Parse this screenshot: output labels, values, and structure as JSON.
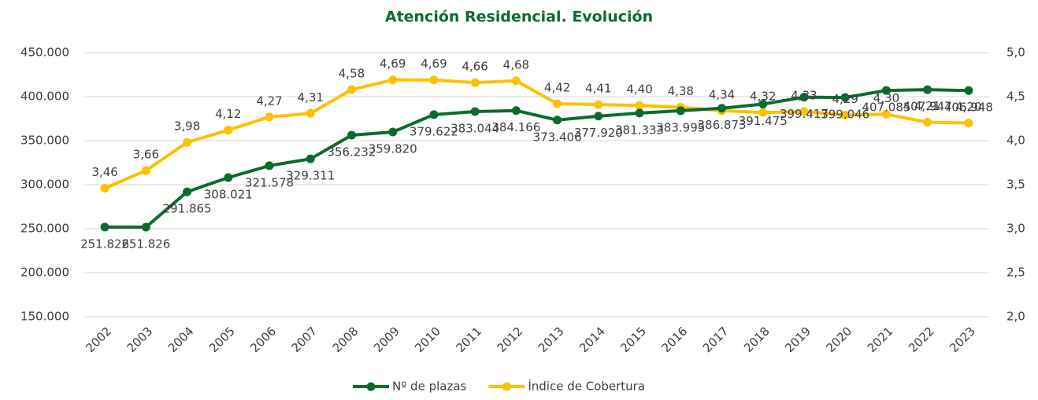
{
  "chart_data": {
    "type": "line",
    "title": "Atención Residencial. Evolución",
    "categories": [
      "2002",
      "2003",
      "2004",
      "2005",
      "2006",
      "2007",
      "2008",
      "2009",
      "2010",
      "2011",
      "2012",
      "2013",
      "2014",
      "2015",
      "2016",
      "2017",
      "2018",
      "2019",
      "2020",
      "2021",
      "2022",
      "2023"
    ],
    "series": [
      {
        "name": "Nº de plazas",
        "color": "#0b6b2f",
        "values": [
          251826,
          251826,
          291865,
          308021,
          321578,
          329311,
          356232,
          359820,
          379622,
          383044,
          384166,
          373406,
          377920,
          381333,
          383995,
          386873,
          391475,
          399417,
          399046,
          407085,
          407947,
          406948
        ],
        "value_labels": [
          "251.826",
          "251.826",
          "291.865",
          "308.021",
          "321.578",
          "329.311",
          "356.232",
          "359.820",
          "379.622",
          "383.044",
          "384.166",
          "373.406",
          "377.920",
          "381.333",
          "383.995",
          "386.873",
          "391.475",
          "399.417",
          "399.046",
          "407.085",
          "407.947",
          "406.948"
        ]
      },
      {
        "name": "Índice de Cobertura",
        "color": "#ffc000",
        "axis": "y2",
        "values": [
          3.46,
          3.66,
          3.98,
          4.12,
          4.27,
          4.31,
          4.58,
          4.69,
          4.69,
          4.66,
          4.68,
          4.42,
          4.41,
          4.4,
          4.38,
          4.34,
          4.32,
          4.33,
          4.29,
          4.3,
          4.21,
          4.2
        ],
        "value_labels": [
          "3,46",
          "3,66",
          "3,98",
          "4,12",
          "4,27",
          "4,31",
          "4,58",
          "4,69",
          "4,69",
          "4,66",
          "4,68",
          "4,42",
          "4,41",
          "4,40",
          "4,38",
          "4,34",
          "4,32",
          "4,33",
          "4,29",
          "4,30",
          "4,21",
          "4,20"
        ]
      }
    ],
    "ylim": [
      150000,
      450000
    ],
    "yticks": [
      {
        "value": 150000,
        "label": "150.000"
      },
      {
        "value": 200000,
        "label": "200.000"
      },
      {
        "value": 250000,
        "label": "250.000"
      },
      {
        "value": 300000,
        "label": "300.000"
      },
      {
        "value": 350000,
        "label": "350.000"
      },
      {
        "value": 400000,
        "label": "400.000"
      },
      {
        "value": 450000,
        "label": "450.000"
      }
    ],
    "y2lim": [
      2.0,
      5.0
    ],
    "y2ticks": [
      {
        "value": 2.0,
        "label": "2,0"
      },
      {
        "value": 2.5,
        "label": "2,5"
      },
      {
        "value": 3.0,
        "label": "3,0"
      },
      {
        "value": 3.5,
        "label": "3,5"
      },
      {
        "value": 4.0,
        "label": "4,0"
      },
      {
        "value": 4.5,
        "label": "4,5"
      },
      {
        "value": 5.0,
        "label": "5,0"
      }
    ],
    "grid": true,
    "legend": "bottom"
  }
}
